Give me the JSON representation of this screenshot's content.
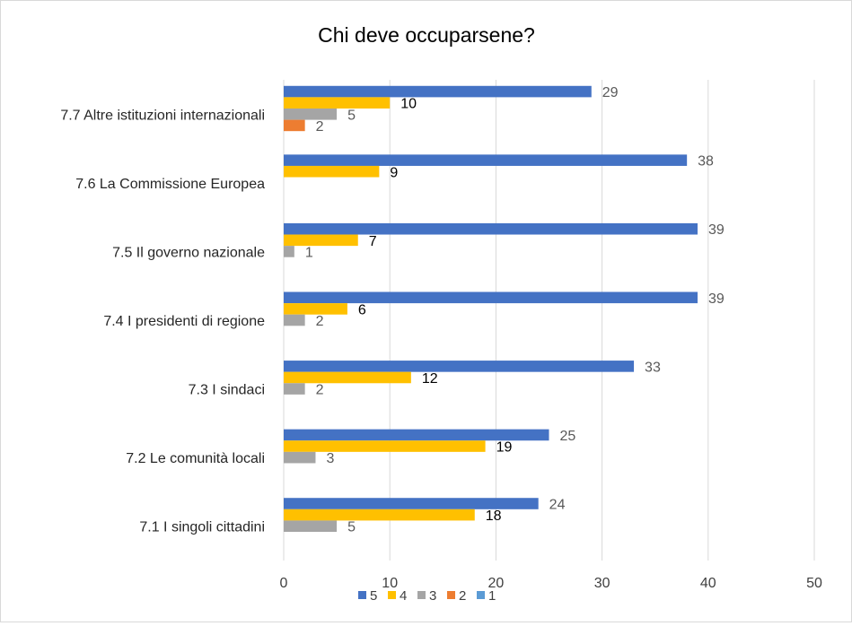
{
  "chart_data": {
    "type": "bar",
    "orientation": "horizontal",
    "title": "Chi deve occuparsene?",
    "xlabel": "",
    "ylabel": "",
    "xlim": [
      0,
      50
    ],
    "x_ticks": [
      0,
      10,
      20,
      30,
      40,
      50
    ],
    "grid": true,
    "legend_position": "bottom",
    "categories": [
      "7.1 I singoli cittadini",
      "7.2 Le comunità locali",
      "7.3 I sindaci",
      "7.4 I presidenti di regione",
      "7.5 Il governo nazionale",
      "7.6 La Commissione Europea",
      "7.7 Altre istituzioni internazionali"
    ],
    "series": [
      {
        "name": "5",
        "color": "#4472c4",
        "label_color": "#595959",
        "values": [
          24,
          25,
          33,
          39,
          39,
          38,
          29
        ]
      },
      {
        "name": "4",
        "color": "#ffc000",
        "label_color": "#000000",
        "values": [
          18,
          19,
          12,
          6,
          7,
          9,
          10
        ]
      },
      {
        "name": "3",
        "color": "#a5a5a5",
        "label_color": "#595959",
        "values": [
          5,
          3,
          2,
          2,
          1,
          0,
          5
        ]
      },
      {
        "name": "2",
        "color": "#ed7d31",
        "label_color": "#595959",
        "values": [
          0,
          0,
          0,
          0,
          0,
          0,
          2
        ]
      },
      {
        "name": "1",
        "color": "#5b9bd5",
        "label_color": "#595959",
        "values": [
          0,
          0,
          0,
          0,
          0,
          0,
          0
        ]
      }
    ]
  }
}
